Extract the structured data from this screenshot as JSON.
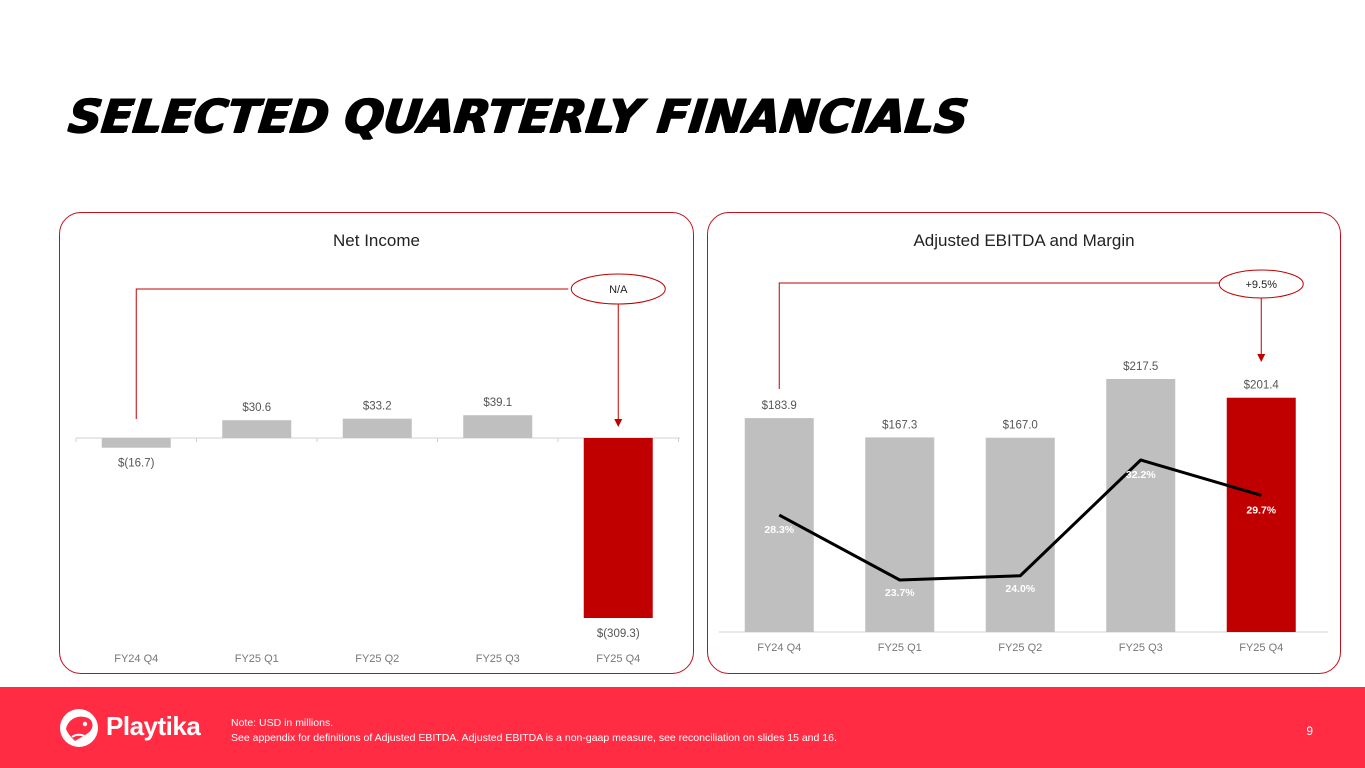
{
  "page": {
    "title": "SELECTED QUARTERLY FINANCIALS",
    "page_number": "9"
  },
  "footer": {
    "brand": "Playtika",
    "note_line1": "Note:  USD in millions.",
    "note_line2": "See appendix for definitions of Adjusted EBITDA. Adjusted EBITDA is a non-gaap measure, see reconciliation on slides 15 and 16."
  },
  "colors": {
    "accent": "#c00000",
    "bar": "#bfbfbf",
    "line": "#000000",
    "footer_bg": "#ff2c44",
    "panel_border": "#c0101e"
  },
  "chart_data": [
    {
      "type": "bar",
      "title": "Net Income",
      "categories": [
        "FY24 Q4",
        "FY25 Q1",
        "FY25 Q2",
        "FY25 Q3",
        "FY25 Q4"
      ],
      "values": [
        -16.7,
        30.6,
        33.2,
        39.1,
        -309.3
      ],
      "value_labels": [
        "$(16.7)",
        "$30.6",
        "$33.2",
        "$39.1",
        "$(309.3)"
      ],
      "highlight_index": 4,
      "comparison_callout": "N/A",
      "grid": false,
      "legend": "none"
    },
    {
      "type": "bar",
      "title": "Adjusted EBITDA and Margin",
      "categories": [
        "FY24 Q4",
        "FY25 Q1",
        "FY25 Q2",
        "FY25 Q3",
        "FY25 Q4"
      ],
      "values": [
        183.9,
        167.3,
        167.0,
        217.5,
        201.4
      ],
      "value_labels": [
        "$183.9",
        "$167.3",
        "$167.0",
        "$217.5",
        "$201.4"
      ],
      "series": [
        {
          "type": "line",
          "values": [
            28.3,
            23.7,
            24.0,
            32.2,
            29.7
          ],
          "value_labels": [
            "28.3%",
            "23.7%",
            "24.0%",
            "32.2%",
            "29.7%"
          ]
        }
      ],
      "highlight_index": 4,
      "comparison_callout": "+9.5%",
      "grid": false,
      "legend": "none"
    }
  ]
}
